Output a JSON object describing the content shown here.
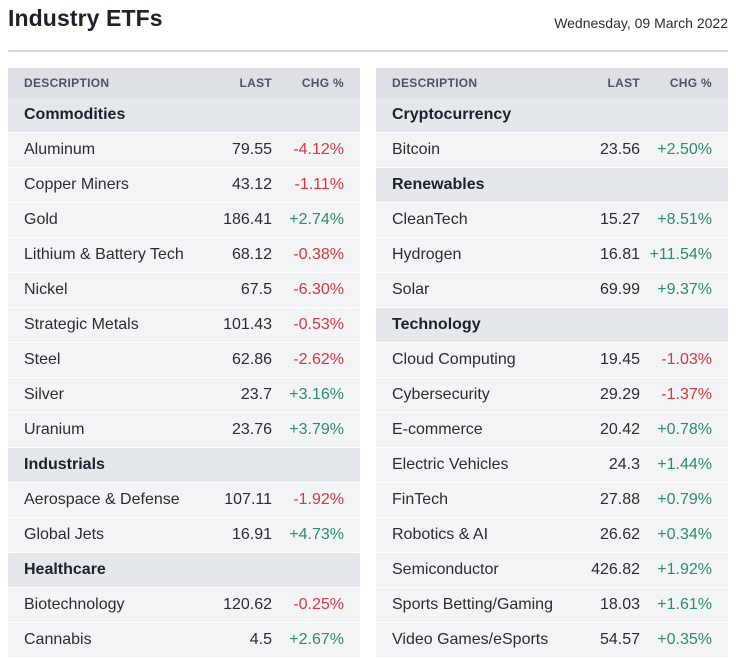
{
  "header": {
    "title": "Industry ETFs",
    "date": "Wednesday, 09 March 2022"
  },
  "columns": {
    "description": "DESCRIPTION",
    "last": "LAST",
    "chg": "CHG %"
  },
  "colors": {
    "negative": "#d9363e",
    "positive": "#2e8b6e",
    "header_bg": "#dde1e6",
    "group_bg": "#e4e7eb",
    "row_bg": "#f2f4f6"
  },
  "left_table": {
    "rows": [
      {
        "type": "group",
        "name": "Commodities"
      },
      {
        "type": "data",
        "name": "Aluminum",
        "last": "79.55",
        "chg": "-4.12%"
      },
      {
        "type": "data",
        "name": "Copper Miners",
        "last": "43.12",
        "chg": "-1.11%"
      },
      {
        "type": "data",
        "name": "Gold",
        "last": "186.41",
        "chg": "+2.74%"
      },
      {
        "type": "data",
        "name": "Lithium & Battery Tech",
        "last": "68.12",
        "chg": "-0.38%"
      },
      {
        "type": "data",
        "name": "Nickel",
        "last": "67.5",
        "chg": "-6.30%"
      },
      {
        "type": "data",
        "name": "Strategic Metals",
        "last": "101.43",
        "chg": "-0.53%"
      },
      {
        "type": "data",
        "name": "Steel",
        "last": "62.86",
        "chg": "-2.62%"
      },
      {
        "type": "data",
        "name": "Silver",
        "last": "23.7",
        "chg": "+3.16%"
      },
      {
        "type": "data",
        "name": "Uranium",
        "last": "23.76",
        "chg": "+3.79%"
      },
      {
        "type": "group",
        "name": "Industrials"
      },
      {
        "type": "data",
        "name": "Aerospace & Defense",
        "last": "107.11",
        "chg": "-1.92%"
      },
      {
        "type": "data",
        "name": "Global Jets",
        "last": "16.91",
        "chg": "+4.73%"
      },
      {
        "type": "group",
        "name": "Healthcare"
      },
      {
        "type": "data",
        "name": "Biotechnology",
        "last": "120.62",
        "chg": "-0.25%"
      },
      {
        "type": "data",
        "name": "Cannabis",
        "last": "4.5",
        "chg": "+2.67%"
      }
    ]
  },
  "right_table": {
    "rows": [
      {
        "type": "group",
        "name": "Cryptocurrency"
      },
      {
        "type": "data",
        "name": "Bitcoin",
        "last": "23.56",
        "chg": "+2.50%"
      },
      {
        "type": "group",
        "name": "Renewables"
      },
      {
        "type": "data",
        "name": "CleanTech",
        "last": "15.27",
        "chg": "+8.51%"
      },
      {
        "type": "data",
        "name": "Hydrogen",
        "last": "16.81",
        "chg": "+11.54%"
      },
      {
        "type": "data",
        "name": "Solar",
        "last": "69.99",
        "chg": "+9.37%"
      },
      {
        "type": "group",
        "name": "Technology"
      },
      {
        "type": "data",
        "name": "Cloud Computing",
        "last": "19.45",
        "chg": "-1.03%"
      },
      {
        "type": "data",
        "name": "Cybersecurity",
        "last": "29.29",
        "chg": "-1.37%"
      },
      {
        "type": "data",
        "name": "E-commerce",
        "last": "20.42",
        "chg": "+0.78%"
      },
      {
        "type": "data",
        "name": "Electric Vehicles",
        "last": "24.3",
        "chg": "+1.44%"
      },
      {
        "type": "data",
        "name": "FinTech",
        "last": "27.88",
        "chg": "+0.79%"
      },
      {
        "type": "data",
        "name": "Robotics & AI",
        "last": "26.62",
        "chg": "+0.34%"
      },
      {
        "type": "data",
        "name": "Semiconductor",
        "last": "426.82",
        "chg": "+1.92%"
      },
      {
        "type": "data",
        "name": "Sports Betting/Gaming",
        "last": "18.03",
        "chg": "+1.61%"
      },
      {
        "type": "data",
        "name": "Video Games/eSports",
        "last": "54.57",
        "chg": "+0.35%"
      }
    ]
  }
}
